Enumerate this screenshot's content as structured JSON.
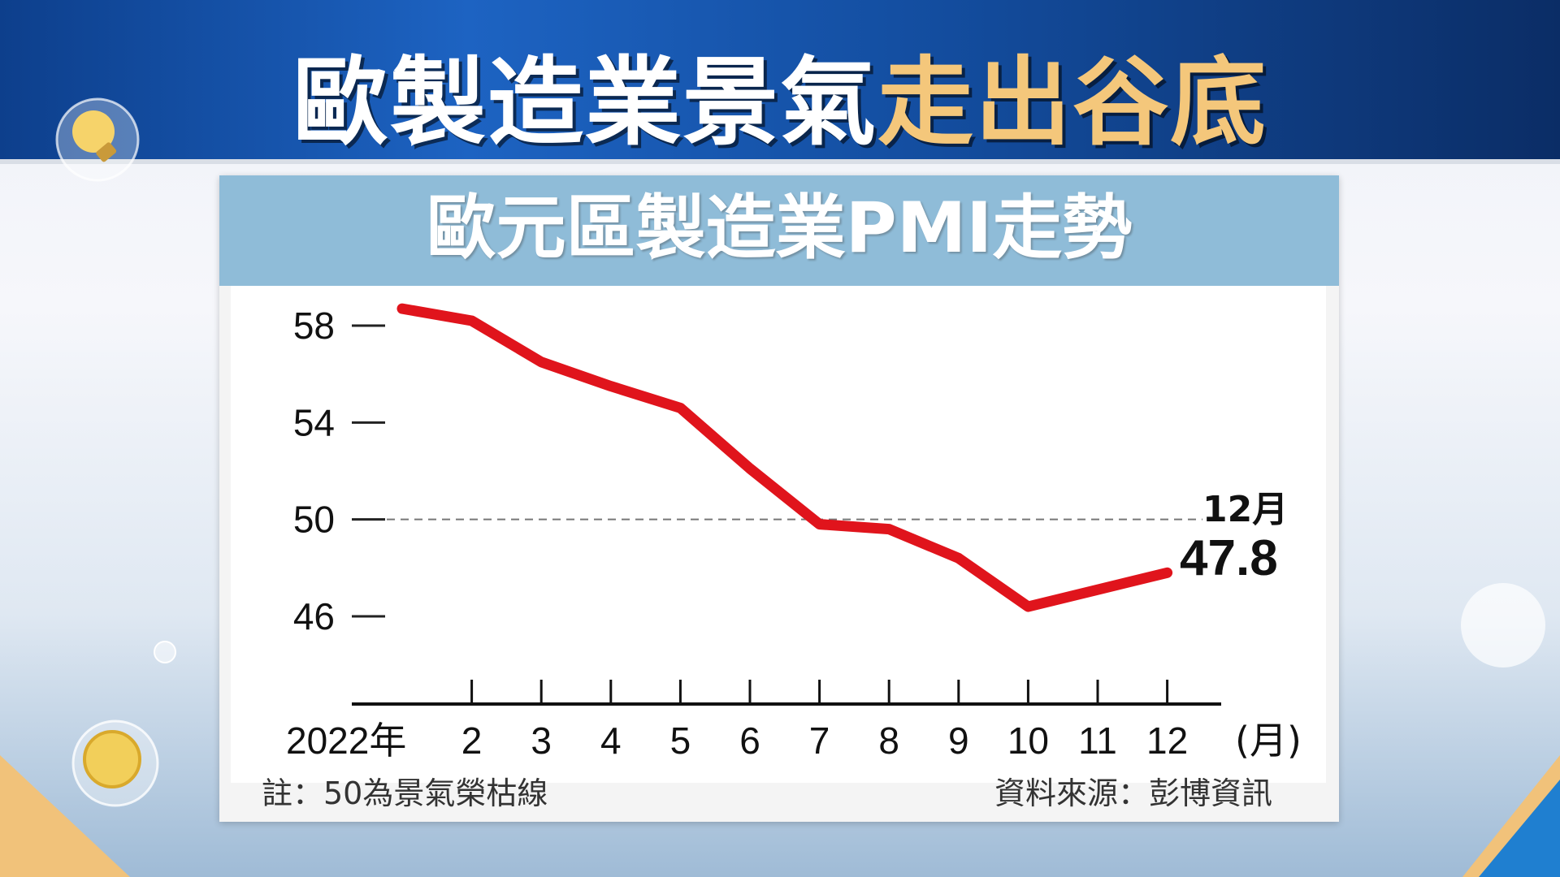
{
  "headline": {
    "part1": "歐製造業景氣",
    "part2": "走出谷底"
  },
  "colors": {
    "line": "#e0141c",
    "header": "#134d9f",
    "gold": "#f4c77b",
    "band": "#8fbcd8"
  },
  "chart_data": {
    "type": "line",
    "title": "歐元區製造業PMI走勢",
    "categories": [
      "2022年",
      "2",
      "3",
      "4",
      "5",
      "6",
      "7",
      "8",
      "9",
      "10",
      "11",
      "12"
    ],
    "x_unit": "(月)",
    "y_ticks": [
      58,
      54,
      50,
      46
    ],
    "ylim": [
      42.5,
      59.5
    ],
    "reference_line": 50,
    "series": [
      {
        "values": [
          58.7,
          58.2,
          56.5,
          55.5,
          54.6,
          52.1,
          49.8,
          49.6,
          48.4,
          46.4,
          47.1,
          47.8
        ]
      }
    ],
    "annotation": {
      "label": "12月",
      "value": "47.8"
    },
    "grid": false,
    "legend": "none"
  },
  "footnote": "註：50為景氣榮枯線",
  "source": "資料來源：彭博資訊"
}
